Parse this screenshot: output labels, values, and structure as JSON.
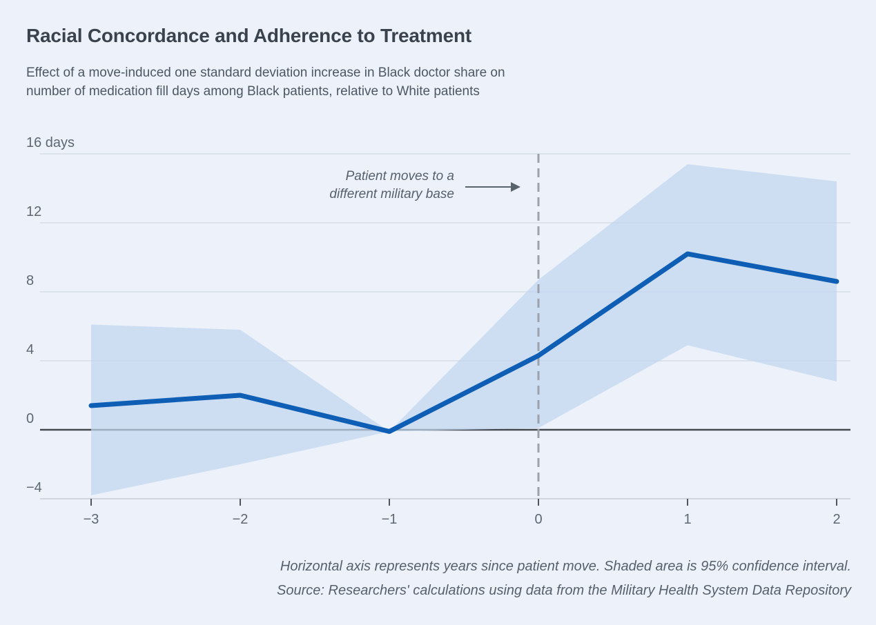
{
  "header": {
    "title": "Racial Concordance and Adherence to Treatment",
    "subtitle_line1": "Effect of a move-induced one standard deviation increase in Black doctor share on",
    "subtitle_line2": "number of medication fill days among Black patients, relative to White patients"
  },
  "annotation": {
    "line1": "Patient moves to a",
    "line2": "different military base"
  },
  "footer": {
    "note": "Horizontal axis represents years since patient move. Shaded area is 95% confidence interval.",
    "source": "Source: Researchers' calculations using data from the Military Health System Data Repository"
  },
  "colors": {
    "background": "#edf2fa",
    "estimate_line": "#0e5eb5",
    "confidence_band": "#cbddf2",
    "zero_axis": "#43484e",
    "gridline": "#d7dce4",
    "dashed_event_line": "#9ba2ac",
    "title_text": "#3a434d",
    "axis_text": "#5d6771"
  },
  "chart_data": {
    "type": "line",
    "title": "Racial Concordance and Adherence to Treatment",
    "xlabel": "Years since patient move",
    "ylabel": "Number of medication fill days",
    "unit": "days",
    "x": [
      -3,
      -2,
      -1,
      0,
      1,
      2
    ],
    "series": [
      {
        "name": "Estimated effect (medication fill days)",
        "role": "estimate",
        "values": [
          1.4,
          2.0,
          -0.1,
          4.3,
          10.2,
          8.6
        ]
      },
      {
        "name": "95% confidence interval upper bound",
        "role": "ci_upper",
        "values": [
          6.1,
          5.8,
          -0.1,
          8.7,
          15.4,
          14.4
        ]
      },
      {
        "name": "95% confidence interval lower bound",
        "role": "ci_lower",
        "values": [
          -3.8,
          -2.0,
          -0.1,
          0.1,
          4.9,
          2.8
        ]
      }
    ],
    "xlim": [
      -3,
      2
    ],
    "ylim": [
      -4,
      16
    ],
    "grid": true,
    "event_line_x": 0,
    "band_meaning": "95% confidence interval",
    "y_ticks": [
      {
        "value": 16,
        "label": "16 days"
      },
      {
        "value": 12,
        "label": "12"
      },
      {
        "value": 8,
        "label": "8"
      },
      {
        "value": 4,
        "label": "4"
      },
      {
        "value": 0,
        "label": "0"
      },
      {
        "value": -4,
        "label": "−4"
      }
    ],
    "x_ticks": [
      {
        "value": -3,
        "label": "−3"
      },
      {
        "value": -2,
        "label": "−2"
      },
      {
        "value": -1,
        "label": "−1"
      },
      {
        "value": 0,
        "label": "0"
      },
      {
        "value": 1,
        "label": "1"
      },
      {
        "value": 2,
        "label": "2"
      }
    ]
  }
}
